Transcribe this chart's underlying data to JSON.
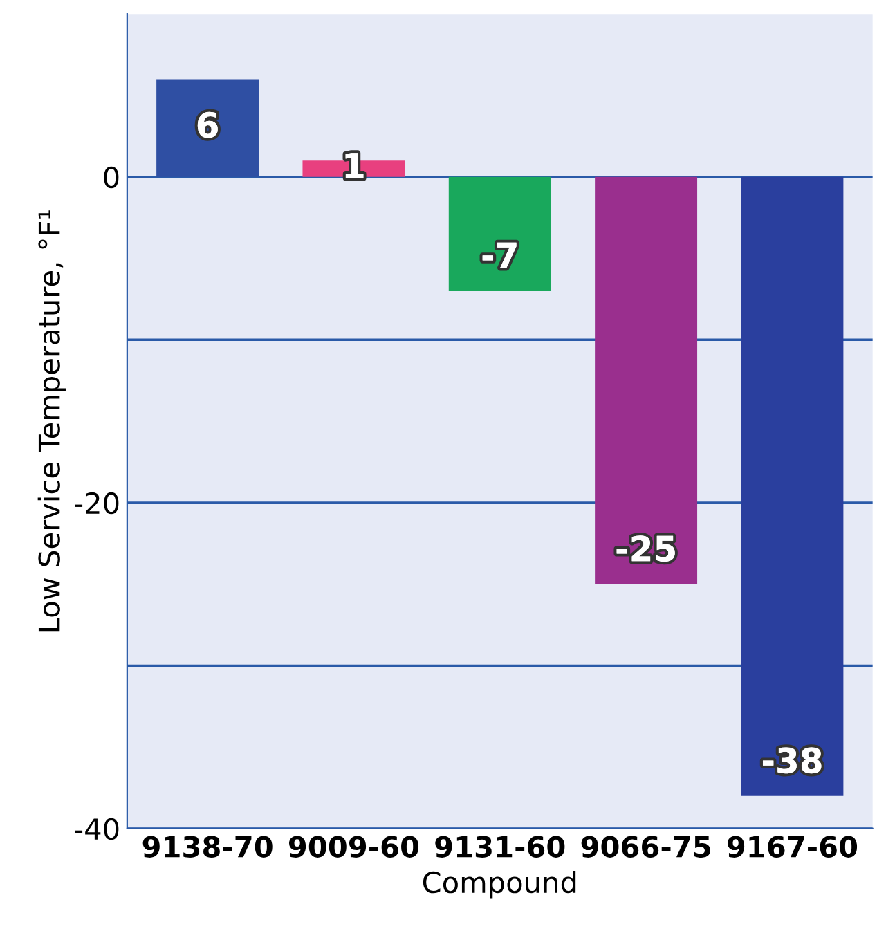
{
  "chart_data": {
    "type": "bar",
    "xlabel": "Compound",
    "ylabel": "Low Service Temperature, °F¹",
    "categories": [
      "9138-70",
      "9009-60",
      "9131-60",
      "9066-75",
      "9167-60"
    ],
    "values": [
      6,
      1,
      -7,
      -25,
      -38
    ],
    "colors": [
      "#2f4fa3",
      "#e8407f",
      "#19a85c",
      "#9a2f8e",
      "#2a3f9e"
    ],
    "ylim": [
      -40,
      10
    ],
    "yticks": [
      {
        "value": -40,
        "label": "-40"
      },
      {
        "value": -30,
        "label": null
      },
      {
        "value": -20,
        "label": "-20"
      },
      {
        "value": -10,
        "label": null
      },
      0
    ],
    "grid": "y",
    "data_labels": true
  }
}
